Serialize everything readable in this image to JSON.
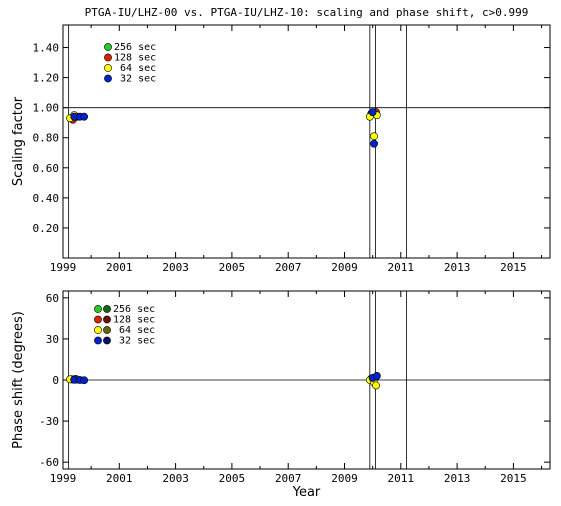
{
  "chart_data": [
    {
      "type": "scatter",
      "title": "PTGA-IU/LHZ-00 vs. PTGA-IU/LHZ-10: scaling and phase shift, c>0.999",
      "xlabel": "",
      "ylabel": "Scaling factor",
      "xlim": [
        1999.0,
        2016.3
      ],
      "ylim": [
        0.0,
        1.55
      ],
      "x_tick_labels": [
        "1999",
        "2001",
        "2003",
        "2005",
        "2007",
        "2009",
        "2011",
        "2013",
        "2015"
      ],
      "y_tick_labels": [
        "0.20",
        "0.40",
        "0.60",
        "0.80",
        "1.00",
        "1.20",
        "1.40"
      ],
      "y_ticks": [
        0.2,
        0.4,
        0.6,
        0.8,
        1.0,
        1.2,
        1.4
      ],
      "reference_line": 1.0,
      "vertical_lines": [
        1999.2,
        2009.9,
        2010.1,
        2011.2
      ],
      "legend": [
        "256 sec",
        "128 sec",
        " 64 sec",
        " 32 sec"
      ],
      "series": [
        {
          "name": "256 sec",
          "color": "#22cc22",
          "points": [
            [
              1999.3,
              0.93
            ],
            [
              1999.5,
              0.94
            ],
            [
              2009.95,
              0.96
            ],
            [
              2010.1,
              0.97
            ]
          ]
        },
        {
          "name": "128 sec",
          "color": "#dd2200",
          "points": [
            [
              1999.35,
              0.92
            ],
            [
              1999.45,
              0.94
            ],
            [
              2009.97,
              0.96
            ],
            [
              2010.12,
              0.97
            ]
          ]
        },
        {
          "name": " 64 sec",
          "color": "#ffff00",
          "points": [
            [
              1999.25,
              0.93
            ],
            [
              1999.4,
              0.95
            ],
            [
              2009.9,
              0.94
            ],
            [
              2010.15,
              0.95
            ],
            [
              2010.05,
              0.81
            ]
          ]
        },
        {
          "name": " 32 sec",
          "color": "#0022cc",
          "points": [
            [
              1999.4,
              0.94
            ],
            [
              1999.6,
              0.94
            ],
            [
              1999.75,
              0.94
            ],
            [
              2010.0,
              0.97
            ],
            [
              2010.05,
              0.76
            ]
          ]
        }
      ]
    },
    {
      "type": "scatter",
      "title": "",
      "xlabel": "Year",
      "ylabel": "Phase shift (degrees)",
      "xlim": [
        1999.0,
        2016.3
      ],
      "ylim": [
        -65,
        65
      ],
      "x_tick_labels": [
        "1999",
        "2001",
        "2003",
        "2005",
        "2007",
        "2009",
        "2011",
        "2013",
        "2015"
      ],
      "y_tick_labels": [
        "-60",
        "-30",
        "0",
        "30",
        "60"
      ],
      "y_ticks": [
        -60,
        -30,
        0,
        30,
        60
      ],
      "reference_line": 0,
      "vertical_lines": [
        1999.2,
        2009.9,
        2010.1,
        2011.2
      ],
      "legend": [
        "256 sec",
        "128 sec",
        " 64 sec",
        " 32 sec"
      ],
      "legend_dark_colors": [
        "#116611",
        "#661100",
        "#666600",
        "#001166"
      ],
      "series": [
        {
          "name": "256 sec",
          "color": "#22cc22",
          "points": [
            [
              1999.3,
              0.5
            ],
            [
              1999.5,
              0.3
            ],
            [
              2009.95,
              1.0
            ],
            [
              2010.1,
              2.0
            ]
          ]
        },
        {
          "name": "128 sec",
          "color": "#dd2200",
          "points": [
            [
              1999.35,
              0.4
            ],
            [
              1999.45,
              0.8
            ],
            [
              2009.97,
              1.2
            ],
            [
              2010.12,
              2.2
            ]
          ]
        },
        {
          "name": " 64 sec",
          "color": "#ffff00",
          "points": [
            [
              1999.25,
              0.5
            ],
            [
              1999.4,
              0.2
            ],
            [
              2009.9,
              0.0
            ],
            [
              2010.05,
              -2.0
            ],
            [
              2010.12,
              -4.0
            ]
          ]
        },
        {
          "name": " 32 sec",
          "color": "#0022cc",
          "points": [
            [
              1999.4,
              0.2
            ],
            [
              1999.6,
              0.0
            ],
            [
              1999.75,
              -0.2
            ],
            [
              2010.0,
              1.5
            ],
            [
              2010.15,
              3.0
            ]
          ]
        }
      ]
    }
  ]
}
